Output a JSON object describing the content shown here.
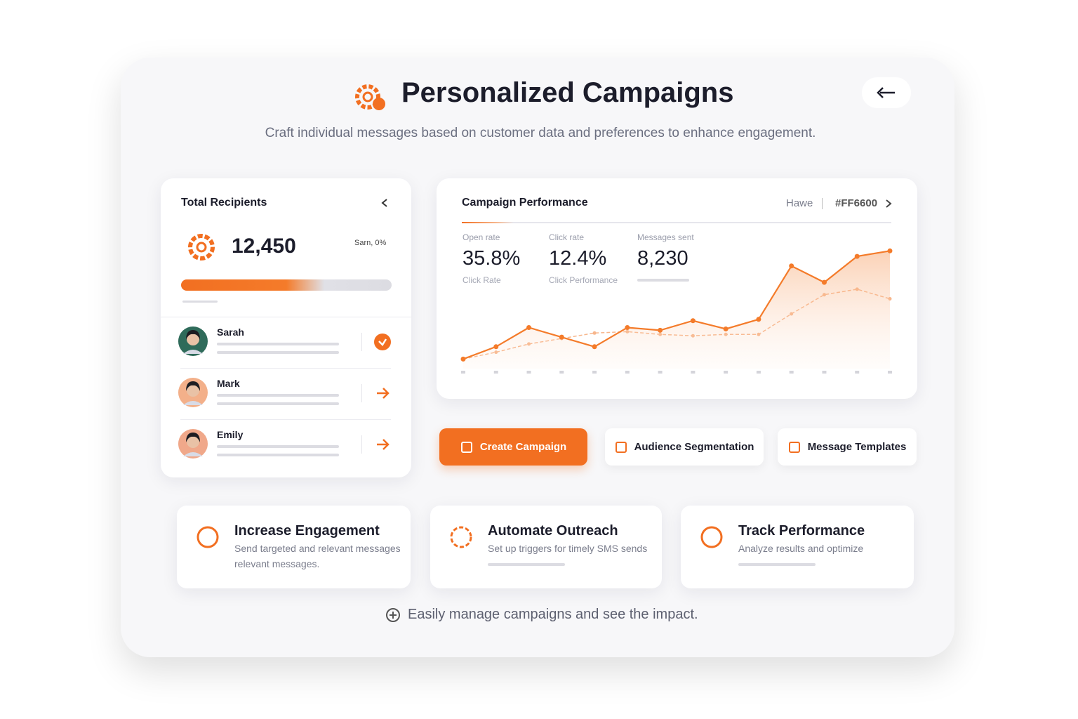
{
  "header": {
    "title": "Personalized Campaigns",
    "subtitle": "Craft individual messages based on customer data and preferences to enhance engagement."
  },
  "recipients": {
    "title": "Total Recipients",
    "total": "12,450",
    "note": "Sarn, 0%",
    "people": [
      {
        "name": "Sarah"
      },
      {
        "name": "Mark"
      },
      {
        "name": "Emily"
      }
    ]
  },
  "performance": {
    "title": "Campaign Performance",
    "filter": "Hawe",
    "code": "#FF6600",
    "stats": [
      {
        "label": "Open rate",
        "value": "35.8%",
        "caption": "Click Rate"
      },
      {
        "label": "Click rate",
        "value": "12.4%",
        "caption": "Click Performance"
      },
      {
        "label": "Messages sent",
        "value": "8,230"
      }
    ]
  },
  "chart_data": {
    "type": "line",
    "ylim": [
      0,
      100
    ],
    "categories": [
      null,
      null,
      null,
      null,
      null,
      null,
      null,
      null,
      null,
      null,
      null,
      null,
      null,
      null
    ],
    "series": [
      {
        "color": "#f47b2a",
        "values": [
          7,
          16,
          30,
          23,
          16,
          30,
          28,
          35,
          29,
          36,
          75,
          63,
          82,
          86
        ]
      },
      {
        "color": "#f7b68c",
        "values": [
          7,
          12,
          18,
          22,
          26,
          27,
          25,
          24,
          25,
          25,
          40,
          54,
          58,
          51
        ]
      }
    ]
  },
  "actions": [
    "Create Campaign",
    "Audience Segmentation",
    "Message Templates"
  ],
  "features": [
    {
      "title": "Increase Engagement",
      "lines": [
        "Send targeted and relevant messages",
        "relevant messages."
      ]
    },
    {
      "title": "Automate Outreach",
      "lines": [
        "Set up triggers for timely SMS sends"
      ]
    },
    {
      "title": "Track Performance",
      "lines": [
        "Analyze results and optimize"
      ]
    }
  ],
  "footer": "Easily manage campaigns and see the impact."
}
